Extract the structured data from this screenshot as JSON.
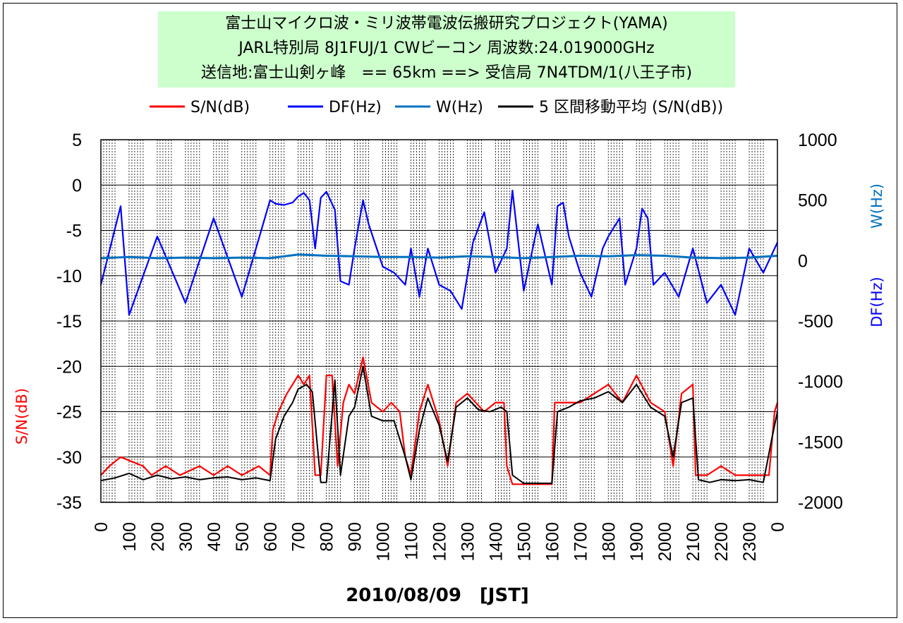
{
  "title_lines": [
    "富士山マイクロ波・ミリ波帯電波伝搬研究プロジェクト(YAMA)",
    "JARL特別局 8J1FUJ/1 CWビーコン 周波数:24.019000GHz",
    "送信地:富士山剣ヶ峰　== 65km ==> 受信局 7N4TDM/1(八王子市)"
  ],
  "colors": {
    "sn": "#ff0000",
    "df": "#0000ff",
    "w": "#0070c0",
    "ma": "#000000"
  },
  "chart_data": {
    "type": "line",
    "xlabel": "2010/08/09　[JST]",
    "x_ticks": [
      "0",
      "100",
      "200",
      "300",
      "400",
      "500",
      "600",
      "700",
      "800",
      "900",
      "1000",
      "1100",
      "1200",
      "1300",
      "1400",
      "1500",
      "1600",
      "1700",
      "1800",
      "1900",
      "2000",
      "2100",
      "2200",
      "2300",
      "0"
    ],
    "x_range": [
      0,
      2400
    ],
    "y_left": {
      "label": "S/N(dB)",
      "range": [
        -35,
        5
      ],
      "ticks": [
        5,
        0,
        -5,
        -10,
        -15,
        -20,
        -25,
        -30,
        -35
      ]
    },
    "y_right": {
      "labels": [
        "W(Hz)",
        "DF(Hz)"
      ],
      "range": [
        -2000,
        1000
      ],
      "ticks": [
        1000,
        500,
        0,
        -500,
        -1000,
        -1500,
        -2000
      ]
    },
    "grid": "vertical dotted lines every 10 minutes; solid horizontal lines every 5 dB",
    "legend": [
      {
        "name": "S/N(dB)",
        "color": "#ff0000"
      },
      {
        "name": "DF(Hz)",
        "color": "#0000ff"
      },
      {
        "name": "W(Hz)",
        "color": "#0070c0"
      },
      {
        "name": "5 区間移動平均 (S/N(dB))",
        "color": "#000000"
      }
    ],
    "legend_position": "top",
    "series": [
      {
        "name": "S/N(dB)",
        "axis": "left",
        "x": [
          0,
          30,
          70,
          150,
          180,
          230,
          280,
          350,
          400,
          450,
          500,
          560,
          600,
          610,
          630,
          660,
          680,
          700,
          720,
          740,
          760,
          780,
          800,
          820,
          840,
          860,
          880,
          900,
          930,
          960,
          1000,
          1030,
          1060,
          1080,
          1100,
          1130,
          1160,
          1200,
          1230,
          1260,
          1300,
          1330,
          1360,
          1400,
          1430,
          1440,
          1460,
          1500,
          1550,
          1600,
          1610,
          1640,
          1700,
          1750,
          1800,
          1850,
          1900,
          1950,
          2000,
          2030,
          2060,
          2100,
          2110,
          2150,
          2200,
          2250,
          2300,
          2330,
          2360,
          2370,
          2390,
          2400
        ],
        "y": [
          -32,
          -31,
          -30,
          -31,
          -32,
          -31,
          -32,
          -31,
          -32,
          -31,
          -32,
          -31,
          -32,
          -27,
          -25,
          -23,
          -22,
          -21,
          -22,
          -21,
          -32,
          -32,
          -21,
          -21,
          -31,
          -24,
          -22,
          -23,
          -19,
          -24,
          -25,
          -24,
          -25,
          -30,
          -32,
          -25,
          -22,
          -26,
          -31,
          -24,
          -23,
          -24,
          -25,
          -24,
          -24,
          -31,
          -33,
          -33,
          -33,
          -33,
          -24,
          -24,
          -24,
          -23,
          -22,
          -24,
          -21,
          -24,
          -25,
          -31,
          -23,
          -22,
          -32,
          -32,
          -31,
          -32,
          -32,
          -32,
          -32,
          -32,
          -25,
          -24
        ]
      },
      {
        "name": "5 区間移動平均 (S/N(dB))",
        "axis": "left",
        "x": [
          0,
          50,
          100,
          150,
          200,
          250,
          300,
          350,
          400,
          450,
          500,
          550,
          600,
          620,
          650,
          680,
          700,
          730,
          750,
          780,
          800,
          830,
          850,
          880,
          900,
          930,
          960,
          1000,
          1040,
          1080,
          1100,
          1130,
          1160,
          1200,
          1230,
          1260,
          1300,
          1340,
          1380,
          1420,
          1440,
          1460,
          1500,
          1550,
          1600,
          1620,
          1660,
          1700,
          1750,
          1800,
          1850,
          1900,
          1950,
          2000,
          2030,
          2060,
          2100,
          2120,
          2160,
          2200,
          2250,
          2300,
          2350,
          2380,
          2400
        ],
        "y": [
          -32.6,
          -32.3,
          -31.8,
          -32.5,
          -32.0,
          -32.4,
          -32.2,
          -32.5,
          -32.3,
          -32.2,
          -32.5,
          -32.3,
          -32.6,
          -28.0,
          -25.5,
          -24.0,
          -22.5,
          -22.0,
          -22.8,
          -32.8,
          -32.8,
          -21.5,
          -32.0,
          -25.5,
          -24.5,
          -20.0,
          -25.5,
          -26.0,
          -26.0,
          -30.0,
          -32.5,
          -27.0,
          -23.5,
          -26.5,
          -30.5,
          -24.5,
          -23.5,
          -24.8,
          -25.0,
          -24.5,
          -25.0,
          -32.0,
          -32.9,
          -32.9,
          -32.9,
          -25.0,
          -24.5,
          -23.8,
          -23.5,
          -22.8,
          -24.0,
          -22.0,
          -24.5,
          -25.5,
          -30.0,
          -24.0,
          -23.5,
          -32.5,
          -32.8,
          -32.5,
          -32.6,
          -32.5,
          -32.8,
          -28.0,
          -25.0
        ]
      },
      {
        "name": "DF(Hz)",
        "axis": "right",
        "x": [
          0,
          70,
          100,
          200,
          300,
          400,
          500,
          600,
          620,
          650,
          680,
          700,
          720,
          740,
          760,
          780,
          800,
          830,
          850,
          880,
          900,
          930,
          950,
          1000,
          1040,
          1080,
          1100,
          1130,
          1160,
          1200,
          1240,
          1280,
          1320,
          1360,
          1400,
          1440,
          1460,
          1500,
          1550,
          1600,
          1620,
          1640,
          1660,
          1700,
          1740,
          1780,
          1800,
          1840,
          1860,
          1900,
          1920,
          1940,
          1960,
          2000,
          2050,
          2100,
          2150,
          2200,
          2250,
          2300,
          2350,
          2400
        ],
        "y": [
          -200,
          450,
          -450,
          200,
          -350,
          350,
          -300,
          500,
          470,
          460,
          480,
          530,
          560,
          500,
          100,
          520,
          570,
          420,
          -170,
          -200,
          100,
          500,
          300,
          -50,
          -100,
          -200,
          100,
          -300,
          100,
          -200,
          -250,
          -400,
          150,
          400,
          -100,
          100,
          580,
          -250,
          300,
          -200,
          450,
          480,
          200,
          -100,
          -300,
          100,
          200,
          350,
          -200,
          100,
          430,
          350,
          -200,
          -100,
          -300,
          100,
          -350,
          -200,
          -450,
          100,
          -100,
          150
        ]
      },
      {
        "name": "W(Hz)",
        "axis": "right",
        "x": [
          0,
          100,
          200,
          300,
          400,
          500,
          600,
          700,
          800,
          900,
          1000,
          1100,
          1200,
          1300,
          1400,
          1500,
          1600,
          1700,
          1800,
          1900,
          2000,
          2100,
          2200,
          2300,
          2400
        ],
        "y": [
          20,
          30,
          20,
          25,
          20,
          25,
          20,
          50,
          40,
          35,
          30,
          30,
          25,
          35,
          30,
          20,
          30,
          40,
          35,
          45,
          40,
          25,
          20,
          25,
          40
        ]
      }
    ]
  }
}
